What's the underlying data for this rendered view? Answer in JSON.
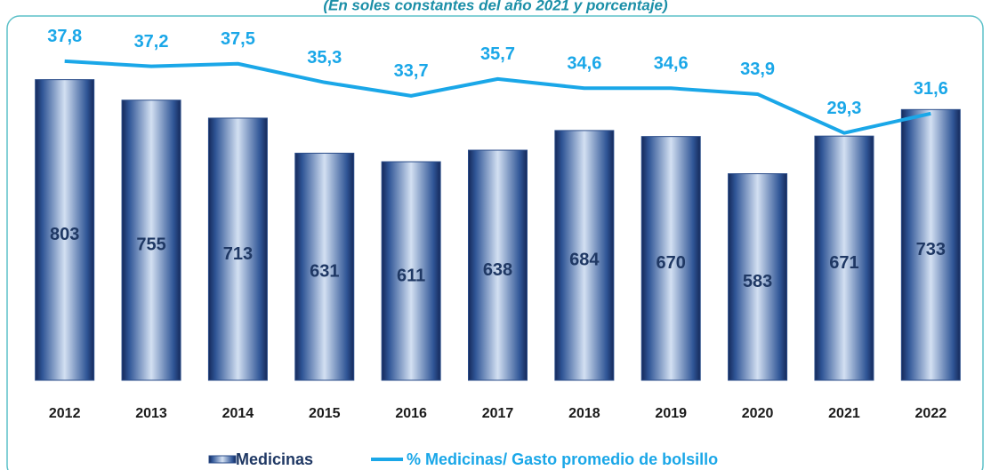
{
  "chart_data": {
    "type": "bar",
    "subtitle": "(En soles constantes del año 2021 y porcentaje)",
    "categories": [
      "2012",
      "2013",
      "2014",
      "2015",
      "2016",
      "2017",
      "2018",
      "2019",
      "2020",
      "2021",
      "2022"
    ],
    "series": [
      {
        "name": "Medicinas",
        "type": "bar",
        "color": "#2b4d8a",
        "values": [
          803,
          755,
          713,
          631,
          611,
          638,
          684,
          670,
          583,
          671,
          733
        ]
      },
      {
        "name": "% Medicinas/ Gasto promedio de bolsillo",
        "type": "line",
        "axis": "y2",
        "color": "#1aa7e8",
        "values": [
          37.8,
          37.2,
          37.5,
          35.3,
          33.7,
          35.7,
          34.6,
          34.6,
          33.9,
          29.3,
          31.6
        ],
        "value_labels": [
          "37,8",
          "37,2",
          "37,5",
          "35,3",
          "33,7",
          "35,7",
          "34,6",
          "34,6",
          "33,9",
          "29,3",
          "31,6"
        ]
      }
    ],
    "ylim": [
      100,
      850
    ],
    "y2lim": [
      0,
      38
    ]
  }
}
